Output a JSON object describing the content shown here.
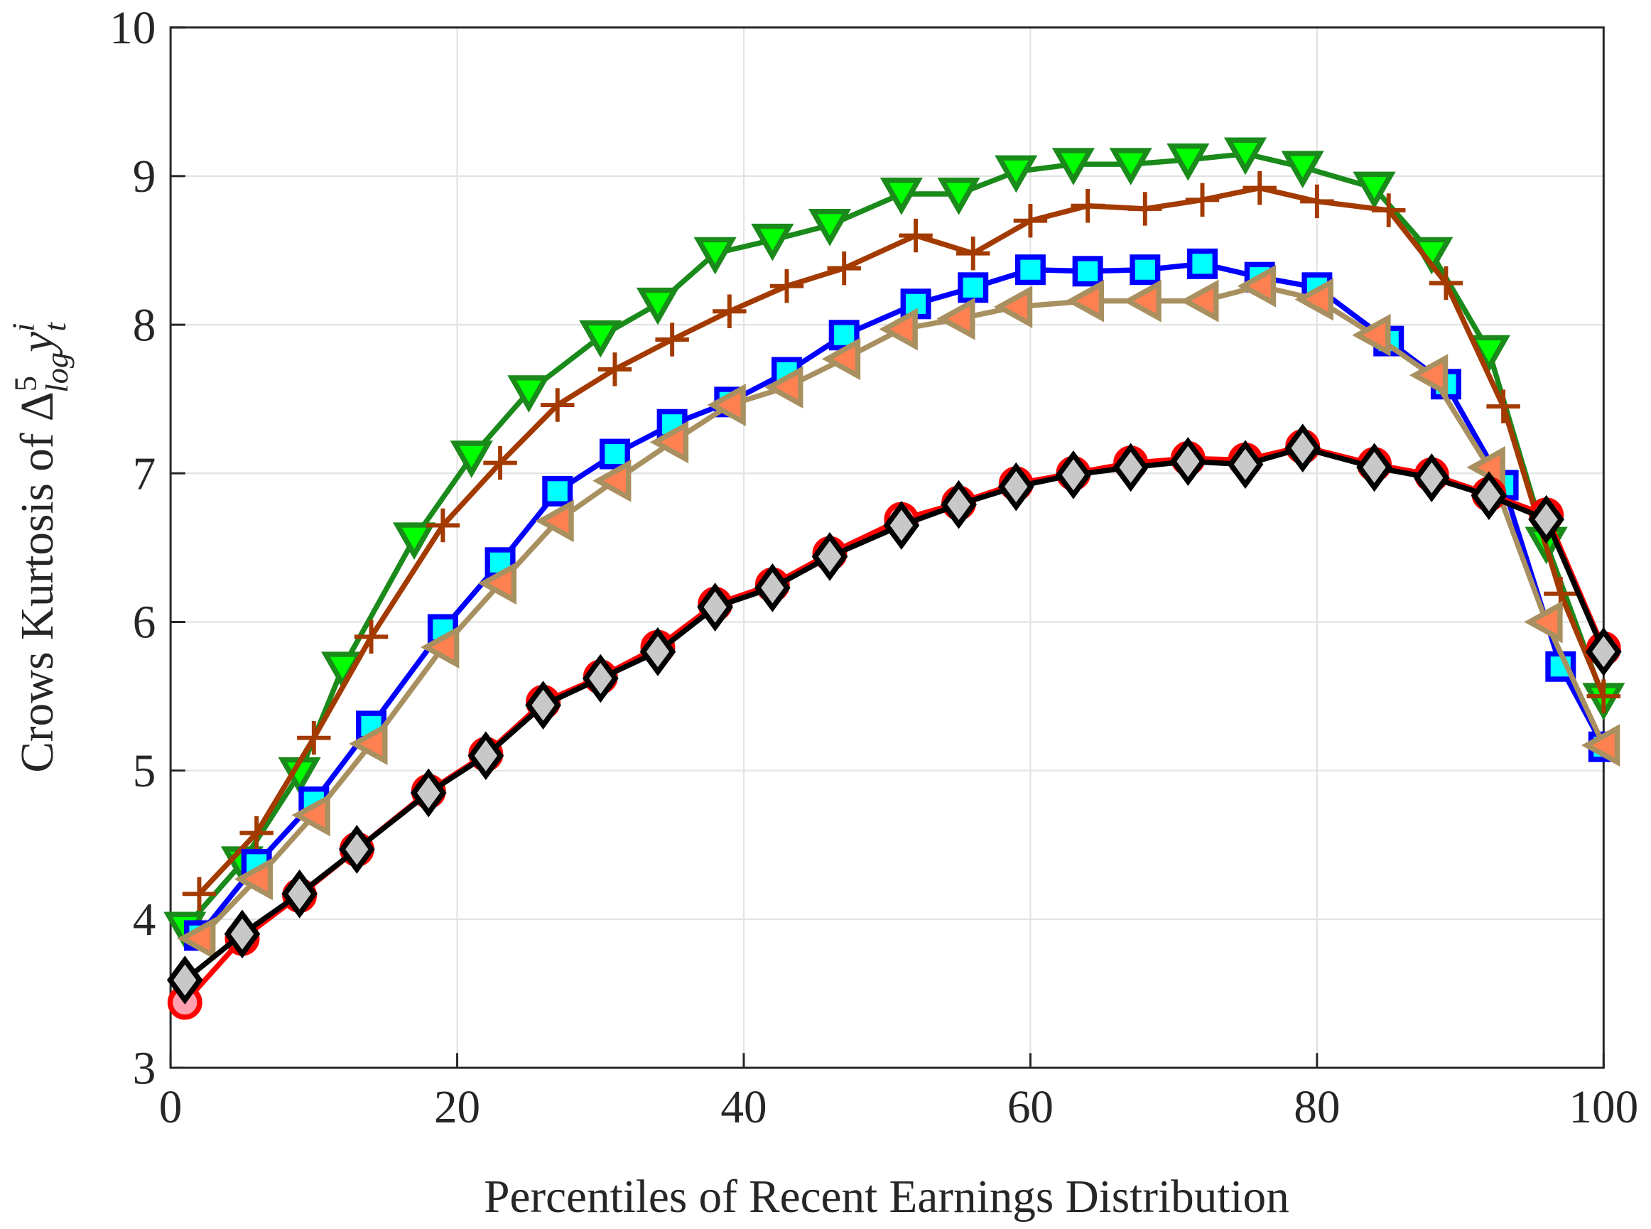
{
  "chart_data": {
    "type": "line",
    "xlabel": "Percentiles of Recent Earnings Distribution",
    "ylabel": {
      "text": "Crows Kurtosis of ",
      "symbol": "Δ",
      "symbol_sup": "5",
      "symbol_sub": "log",
      "var": "y",
      "var_sup": "i",
      "var_sub": "t"
    },
    "xlim": [
      0,
      100
    ],
    "xticks": [
      0,
      20,
      40,
      60,
      80,
      100
    ],
    "ylim": [
      3,
      10
    ],
    "yticks": [
      3,
      4,
      5,
      6,
      7,
      8,
      9,
      10
    ],
    "grid": true,
    "series": [
      {
        "color": "#1a8a1a",
        "marker": "triangle-down",
        "marker_face": "#00ff00",
        "marker_edge": "#1a8a1a",
        "x": [
          1,
          5,
          9,
          12,
          17,
          21,
          25,
          30,
          34,
          38,
          42,
          46,
          51,
          55,
          59,
          63,
          67,
          71,
          75,
          79,
          84,
          88,
          92,
          96,
          100
        ],
        "values": [
          3.94,
          4.38,
          4.98,
          5.69,
          6.56,
          7.11,
          7.55,
          7.92,
          8.14,
          8.48,
          8.57,
          8.67,
          8.88,
          8.88,
          9.03,
          9.08,
          9.08,
          9.11,
          9.15,
          9.06,
          8.92,
          8.48,
          7.82,
          6.53,
          5.48
        ]
      },
      {
        "color": "#a33a00",
        "marker": "plus",
        "marker_face": "none",
        "marker_edge": "#a33a00",
        "x": [
          2,
          6,
          10,
          14,
          19,
          23,
          27,
          31,
          35,
          39,
          43,
          47,
          52,
          56,
          60,
          64,
          68,
          72,
          76,
          80,
          85,
          89,
          93,
          97,
          100
        ],
        "values": [
          4.17,
          4.58,
          5.22,
          5.9,
          6.65,
          7.07,
          7.46,
          7.7,
          7.9,
          8.09,
          8.26,
          8.38,
          8.6,
          8.48,
          8.7,
          8.8,
          8.78,
          8.84,
          8.92,
          8.83,
          8.77,
          8.28,
          7.45,
          6.19,
          5.5
        ]
      },
      {
        "color": "#0000ff",
        "marker": "square",
        "marker_face": "#00ffff",
        "marker_edge": "#0000ff",
        "x": [
          2,
          6,
          10,
          14,
          19,
          23,
          27,
          31,
          35,
          39,
          43,
          47,
          52,
          56,
          60,
          64,
          68,
          72,
          76,
          80,
          85,
          89,
          93,
          97,
          100
        ],
        "values": [
          3.89,
          4.37,
          4.79,
          5.3,
          5.95,
          6.4,
          6.88,
          7.13,
          7.33,
          7.48,
          7.68,
          7.93,
          8.14,
          8.25,
          8.37,
          8.36,
          8.37,
          8.41,
          8.32,
          8.25,
          7.89,
          7.6,
          6.92,
          5.7,
          5.16
        ]
      },
      {
        "color": "#a89060",
        "marker": "triangle-left",
        "marker_face": "#ff8050",
        "marker_edge": "#a89060",
        "x": [
          2,
          6,
          10,
          14,
          19,
          23,
          27,
          31,
          35,
          39,
          43,
          47,
          51,
          55,
          59,
          64,
          68,
          72,
          76,
          80,
          84,
          88,
          92,
          96,
          100
        ],
        "values": [
          3.87,
          4.27,
          4.7,
          5.18,
          5.83,
          6.26,
          6.68,
          6.95,
          7.21,
          7.46,
          7.58,
          7.77,
          7.97,
          8.04,
          8.12,
          8.16,
          8.16,
          8.16,
          8.26,
          8.17,
          7.93,
          7.66,
          7.04,
          6.0,
          5.17
        ]
      },
      {
        "color": "#ff0000",
        "marker": "circle",
        "marker_face": "#ffa0b0",
        "marker_edge": "#ff0000",
        "x": [
          1,
          5,
          9,
          13,
          18,
          22,
          26,
          30,
          34,
          38,
          42,
          46,
          51,
          55,
          59,
          63,
          67,
          71,
          75,
          79,
          84,
          88,
          92,
          96,
          100
        ],
        "values": [
          3.44,
          3.87,
          4.16,
          4.47,
          4.86,
          5.11,
          5.46,
          5.63,
          5.83,
          6.12,
          6.25,
          6.46,
          6.69,
          6.8,
          6.93,
          7.0,
          7.07,
          7.1,
          7.09,
          7.18,
          7.06,
          6.99,
          6.86,
          6.72,
          5.82
        ]
      },
      {
        "color": "#000000",
        "marker": "diamond",
        "marker_face": "#c8c8c8",
        "marker_edge": "#000000",
        "x": [
          1,
          5,
          9,
          13,
          18,
          22,
          26,
          30,
          34,
          38,
          42,
          46,
          51,
          55,
          59,
          63,
          67,
          71,
          75,
          79,
          84,
          88,
          92,
          96,
          100
        ],
        "values": [
          3.59,
          3.9,
          4.17,
          4.47,
          4.85,
          5.1,
          5.44,
          5.62,
          5.8,
          6.1,
          6.23,
          6.44,
          6.65,
          6.79,
          6.91,
          6.99,
          7.04,
          7.08,
          7.06,
          7.17,
          7.04,
          6.97,
          6.85,
          6.69,
          5.8
        ]
      }
    ]
  }
}
